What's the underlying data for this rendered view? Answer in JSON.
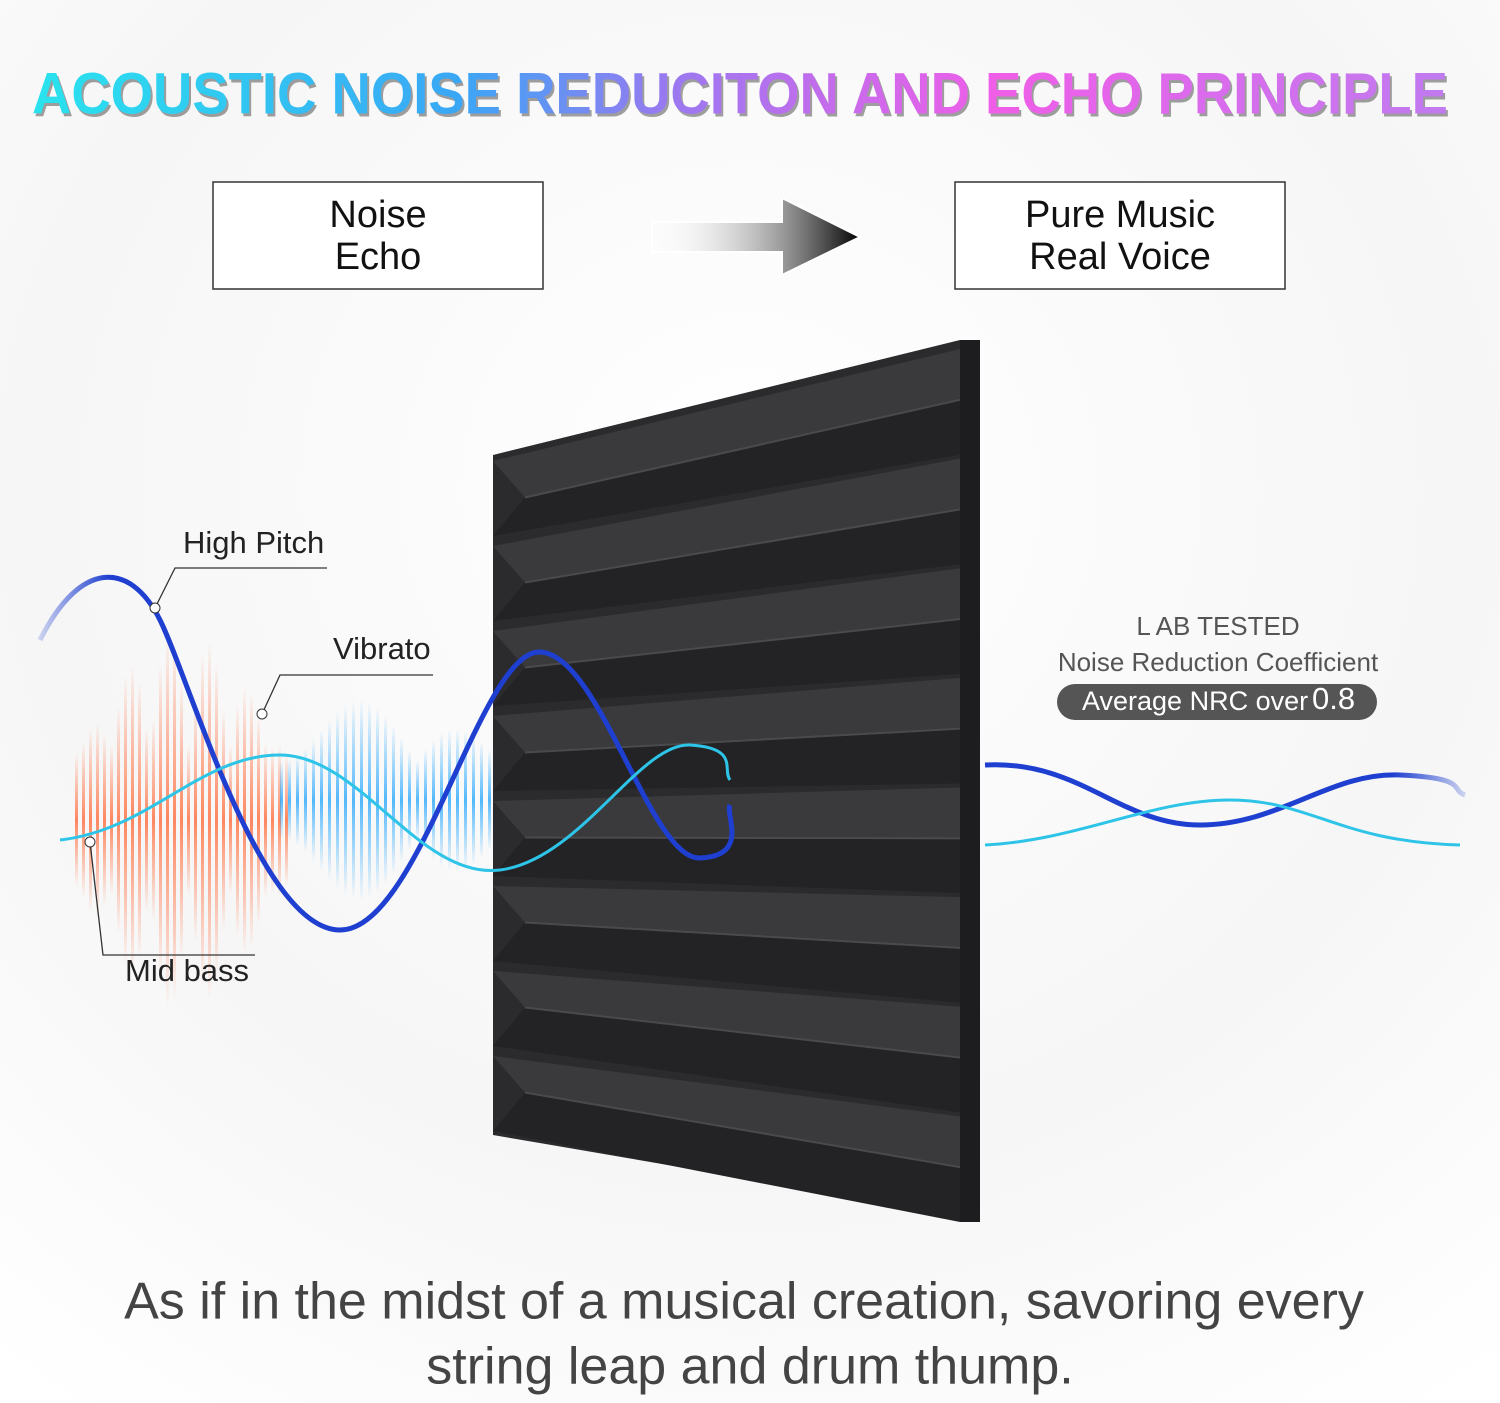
{
  "title": "ACOUSTIC NOISE REDUCITON AND ECHO PRINCIPLE",
  "before": {
    "lines": [
      "Noise",
      "Echo"
    ]
  },
  "after": {
    "lines": [
      "Pure Music",
      "Real Voice"
    ]
  },
  "wave_labels": {
    "high": "High Pitch",
    "vibrato": "Vibrato",
    "bass": "Mid bass"
  },
  "lab": {
    "tested": "L AB TESTED",
    "coefficient": "Noise Reduction Coefficient",
    "average": "Average NRC over",
    "nrc": 0.8
  },
  "caption": {
    "lines": [
      "As if in the midst of a musical creation, savoring every",
      "string leap and drum thump."
    ]
  }
}
